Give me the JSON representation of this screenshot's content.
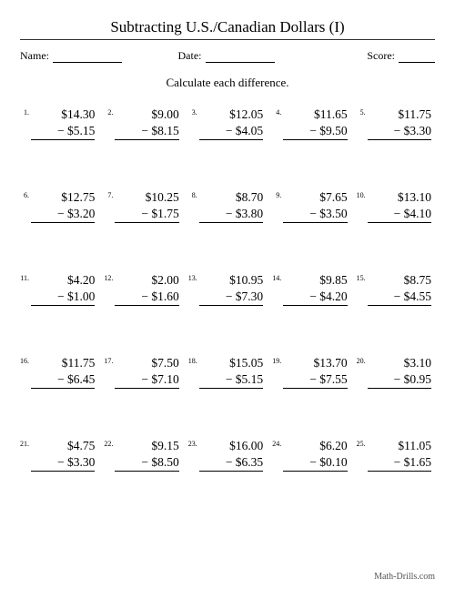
{
  "title": "Subtracting U.S./Canadian Dollars (I)",
  "header": {
    "name_label": "Name:",
    "date_label": "Date:",
    "score_label": "Score:",
    "name_blank_width": 76,
    "date_blank_width": 76,
    "score_blank_width": 40
  },
  "instruction": "Calculate each difference.",
  "columns": 5,
  "problem_style": {
    "number_fontsize": 8,
    "value_fontsize": 13.5,
    "underline_color": "#000000"
  },
  "problems": [
    {
      "n": "1.",
      "top": "$14.30",
      "bot": "− $5.15"
    },
    {
      "n": "2.",
      "top": "$9.00",
      "bot": "− $8.15"
    },
    {
      "n": "3.",
      "top": "$12.05",
      "bot": "− $4.05"
    },
    {
      "n": "4.",
      "top": "$11.65",
      "bot": "− $9.50"
    },
    {
      "n": "5.",
      "top": "$11.75",
      "bot": "− $3.30"
    },
    {
      "n": "6.",
      "top": "$12.75",
      "bot": "− $3.20"
    },
    {
      "n": "7.",
      "top": "$10.25",
      "bot": "− $1.75"
    },
    {
      "n": "8.",
      "top": "$8.70",
      "bot": "− $3.80"
    },
    {
      "n": "9.",
      "top": "$7.65",
      "bot": "− $3.50"
    },
    {
      "n": "10.",
      "top": "$13.10",
      "bot": "− $4.10"
    },
    {
      "n": "11.",
      "top": "$4.20",
      "bot": "− $1.00"
    },
    {
      "n": "12.",
      "top": "$2.00",
      "bot": "− $1.60"
    },
    {
      "n": "13.",
      "top": "$10.95",
      "bot": "− $7.30"
    },
    {
      "n": "14.",
      "top": "$9.85",
      "bot": "− $4.20"
    },
    {
      "n": "15.",
      "top": "$8.75",
      "bot": "− $4.55"
    },
    {
      "n": "16.",
      "top": "$11.75",
      "bot": "− $6.45"
    },
    {
      "n": "17.",
      "top": "$7.50",
      "bot": "− $7.10"
    },
    {
      "n": "18.",
      "top": "$15.05",
      "bot": "− $5.15"
    },
    {
      "n": "19.",
      "top": "$13.70",
      "bot": "− $7.55"
    },
    {
      "n": "20.",
      "top": "$3.10",
      "bot": "− $0.95"
    },
    {
      "n": "21.",
      "top": "$4.75",
      "bot": "− $3.30"
    },
    {
      "n": "22.",
      "top": "$9.15",
      "bot": "− $8.50"
    },
    {
      "n": "23.",
      "top": "$16.00",
      "bot": "− $6.35"
    },
    {
      "n": "24.",
      "top": "$6.20",
      "bot": "− $0.10"
    },
    {
      "n": "25.",
      "top": "$11.05",
      "bot": "− $1.65"
    }
  ],
  "footer": "Math-Drills.com"
}
